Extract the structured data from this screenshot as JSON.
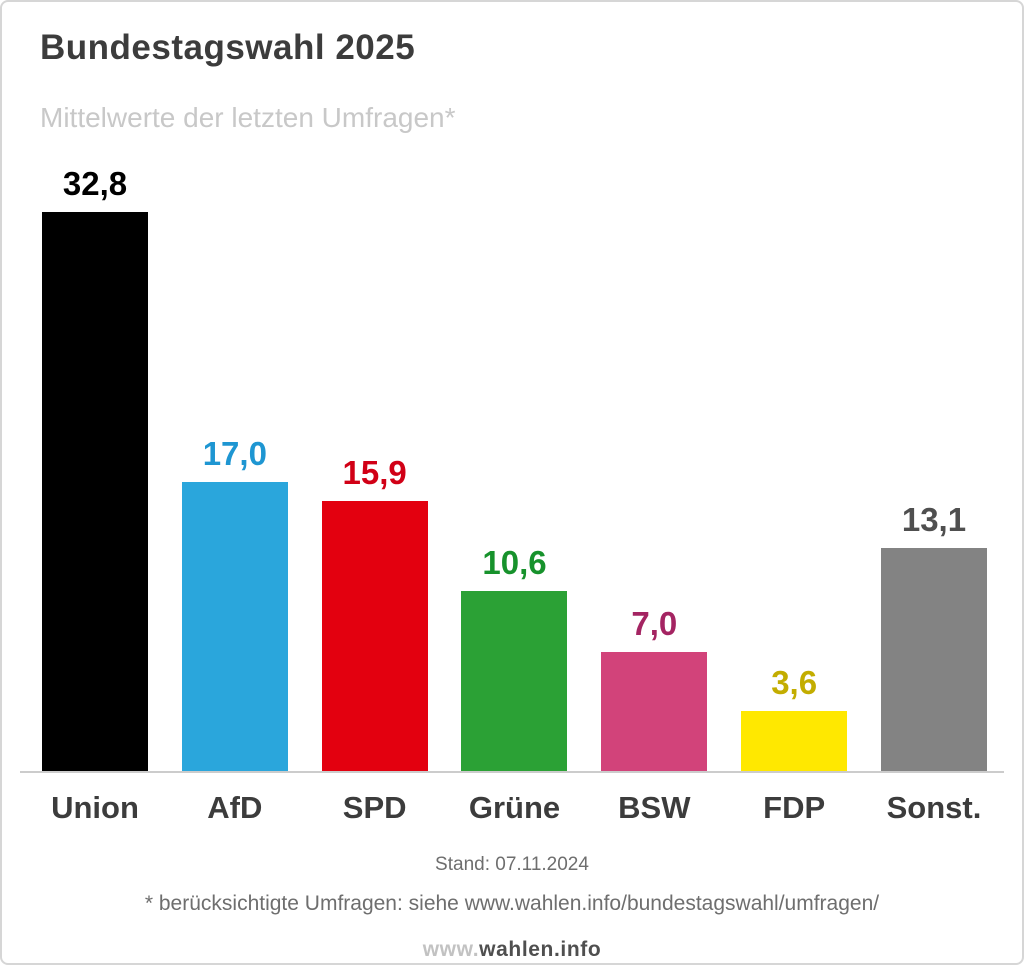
{
  "header": {
    "title": "Bundestagswahl 2025",
    "subtitle": "Mittelwerte der letzten Umfragen*"
  },
  "chart_data": {
    "type": "bar",
    "title": "Bundestagswahl 2025",
    "subtitle": "Mittelwerte der letzten Umfragen*",
    "categories": [
      "Union",
      "AfD",
      "SPD",
      "Grüne",
      "BSW",
      "FDP",
      "Sonst."
    ],
    "values": [
      32.8,
      17.0,
      15.9,
      10.6,
      7.0,
      3.6,
      13.1
    ],
    "value_labels": [
      "32,8",
      "17,0",
      "15,9",
      "10,6",
      "7,0",
      "3,6",
      "13,1"
    ],
    "bar_colors": [
      "#000000",
      "#2aa6dc",
      "#e3000f",
      "#2ba135",
      "#d2437a",
      "#ffe800",
      "#838383"
    ],
    "label_colors": [
      "#000000",
      "#1e96d2",
      "#d10016",
      "#17922c",
      "#a42462",
      "#c3ad00",
      "#4f4f4f"
    ],
    "ylim": [
      0,
      35
    ],
    "grid": false,
    "legend": "none"
  },
  "footer": {
    "stand": "Stand: 07.11.2024",
    "note": "* berücksichtigte Umfragen: siehe www.wahlen.info/bundestagswahl/umfragen/",
    "brand_prefix": "www.",
    "brand_main": "wahlen.info"
  }
}
